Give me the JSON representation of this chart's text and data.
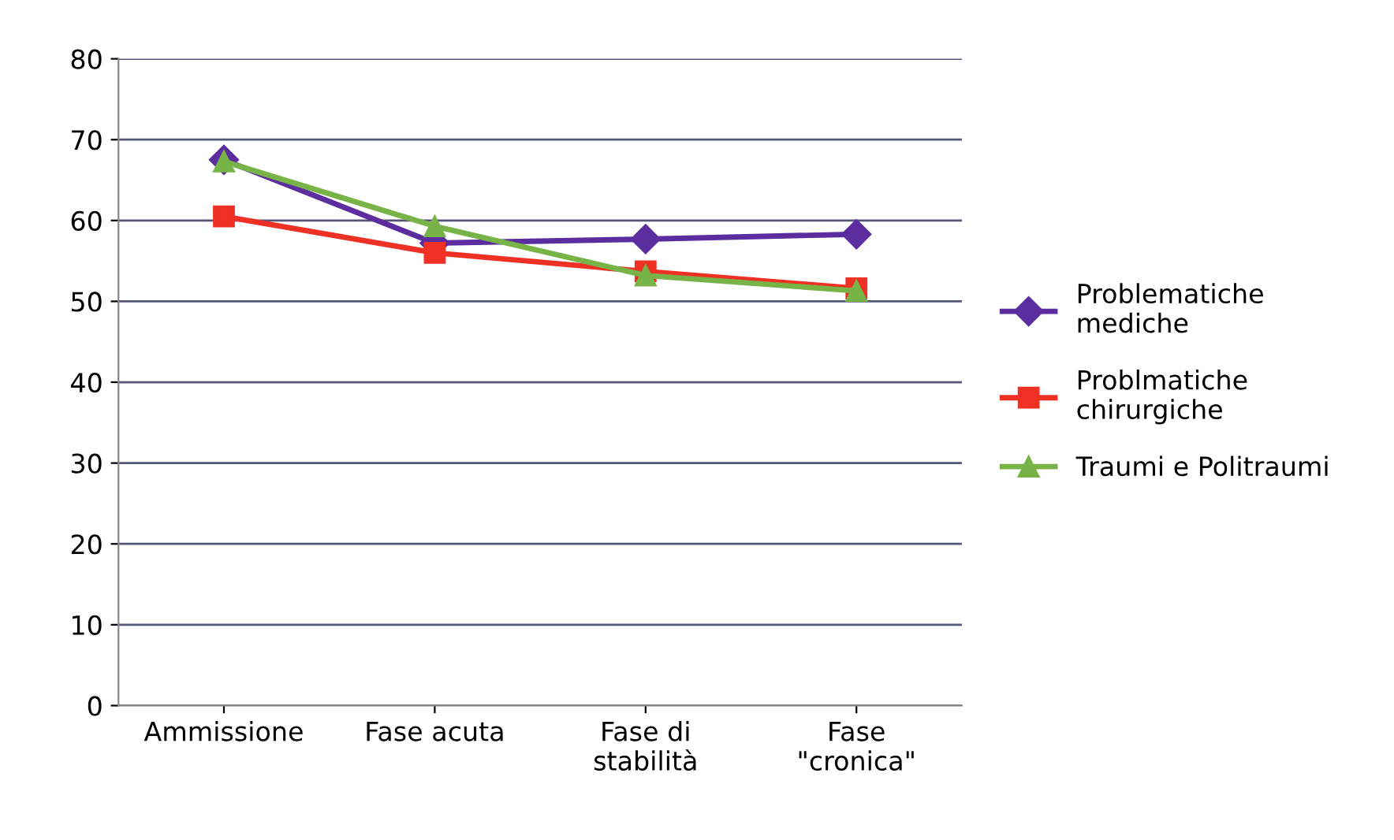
{
  "chart_data": {
    "type": "line",
    "categories": [
      "Ammissione",
      "Fase acuta",
      "Fase di\nstabilità",
      "Fase\n\"cronica\""
    ],
    "ylim": [
      0,
      80
    ],
    "yticks": [
      0,
      10,
      20,
      30,
      40,
      50,
      60,
      70,
      80
    ],
    "grid": "y",
    "legend": "right",
    "series": [
      {
        "name": "Problematiche\nmediche",
        "color": "#5b2d9e",
        "marker": "diamond",
        "values": [
          67.5,
          57.2,
          57.7,
          58.3
        ]
      },
      {
        "name": "Problmatiche\nchirurgiche",
        "color": "#ee3124",
        "marker": "square",
        "values": [
          60.5,
          56.0,
          53.7,
          51.6
        ]
      },
      {
        "name": "Traumi e Politraumi",
        "color": "#77b347",
        "marker": "triangle",
        "values": [
          67.3,
          59.3,
          53.2,
          51.3
        ]
      }
    ]
  }
}
